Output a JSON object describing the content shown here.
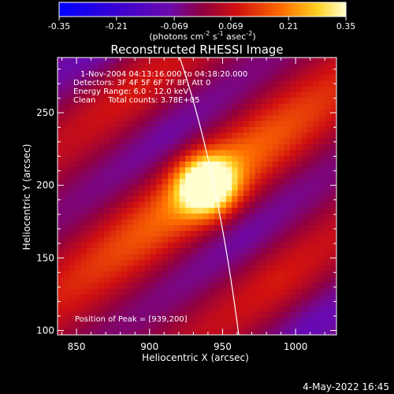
{
  "chart_data": {
    "type": "heatmap",
    "title": "Reconstructed RHESSI Image",
    "xlabel": "Heliocentric X (arcsec)",
    "ylabel": "Heliocentric Y (arcsec)",
    "xlim": [
      837,
      1028
    ],
    "ylim": [
      97,
      288
    ],
    "x_ticks": [
      850,
      900,
      950,
      1000
    ],
    "y_ticks": [
      100,
      150,
      200,
      250
    ],
    "peak": {
      "x": 939,
      "y": 200
    },
    "colorbar": {
      "min": -0.35,
      "max": 0.35,
      "tick_labels": [
        "-0.35",
        "-0.21",
        "-0.069",
        "0.069",
        "0.21",
        "0.35"
      ],
      "unit_prefix": "(photons cm",
      "unit_exp1": "-2",
      "unit_mid": " s",
      "unit_exp2": "-1",
      "unit_mid2": " asec",
      "unit_exp3": "-2",
      "unit_suffix": ")"
    },
    "info_lines": [
      "1-Nov-2004 04:13:16.000 to 04:18:20.000",
      "Detectors: 3F 4F 5F 6F 7F 8F, Att 0",
      "Energy Range: 6.0 - 12.0 keV",
      "Clean     Total counts: 3.78E+05"
    ],
    "peak_label": "Position of Peak = [939,200]",
    "timestamp": "4-May-2022 16:45"
  }
}
